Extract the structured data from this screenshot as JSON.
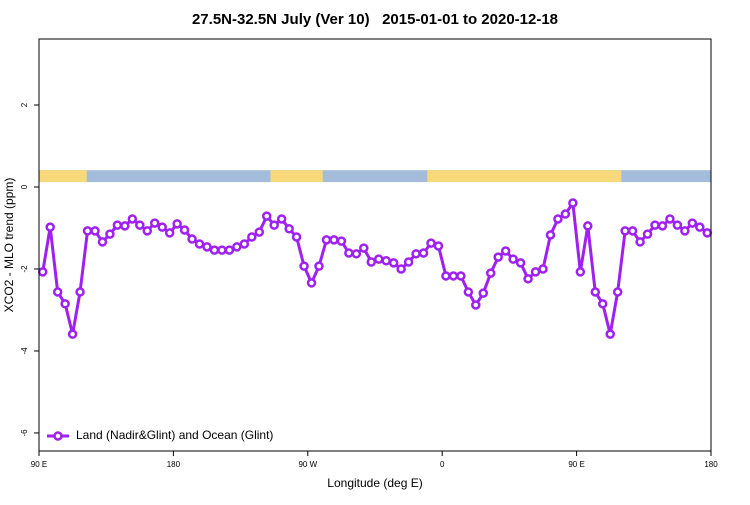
{
  "chart_data": {
    "type": "line",
    "title": "27.5N-32.5N July (Ver 10)   2015-01-01 to 2020-12-18",
    "xlabel": "Longitude (deg E)",
    "ylabel": "XCO2 - MLO trend (ppm)",
    "xlim": [
      90,
      540
    ],
    "xticks": [
      {
        "value": 90,
        "label": "90 E"
      },
      180,
      {
        "value": 270,
        "label": "90 W"
      },
      {
        "value": 360,
        "label": "0"
      },
      {
        "value": 450,
        "label": "90 E"
      },
      {
        "value": 540,
        "label": "180"
      }
    ],
    "ylim": [
      -6.44,
      3.61
    ],
    "yticks": [
      2,
      0,
      -2,
      -4,
      -6
    ],
    "legend": "bottom-left",
    "surface_band": {
      "ylim": [
        0.12,
        0.41
      ],
      "ocean_color": "#a3bcdc",
      "land_color": "#f7d97c",
      "land_ranges": [
        [
          90,
          122
        ],
        [
          245,
          280
        ],
        [
          350,
          480
        ]
      ]
    },
    "x": [
      92.5,
      97.5,
      102.5,
      107.5,
      112.5,
      117.5,
      122.5,
      127.5,
      132.5,
      137.5,
      142.5,
      147.5,
      152.5,
      157.5,
      162.5,
      167.5,
      172.5,
      177.5,
      182.5,
      187.5,
      192.5,
      197.5,
      202.5,
      207.5,
      212.5,
      217.5,
      222.5,
      227.5,
      232.5,
      237.5,
      242.5,
      247.5,
      252.5,
      257.5,
      262.5,
      267.5,
      272.5,
      277.5,
      282.5,
      287.5,
      292.5,
      297.5,
      302.5,
      307.5,
      312.5,
      317.5,
      322.5,
      327.5,
      332.5,
      337.5,
      342.5,
      347.5,
      352.5,
      357.5,
      362.5,
      367.5,
      372.5,
      377.5,
      382.5,
      387.5,
      392.5,
      397.5,
      402.5,
      407.5,
      412.5,
      417.5,
      422.5,
      427.5,
      432.5,
      437.5,
      442.5,
      447.5,
      452.5,
      457.5,
      462.5,
      467.5,
      472.5,
      477.5,
      482.5,
      487.5,
      492.5,
      497.5,
      502.5,
      507.5,
      512.5,
      517.5,
      522.5,
      527.5,
      532.5,
      537.5
    ],
    "series": [
      {
        "name": "Land (Nadir&Glint) and Ocean (Glint)",
        "color": "#a020f0",
        "values": [
          -2.07,
          -0.98,
          -2.56,
          -2.85,
          -3.59,
          -2.56,
          -1.07,
          -1.07,
          -1.34,
          -1.15,
          -0.93,
          -0.95,
          -0.78,
          -0.93,
          -1.07,
          -0.88,
          -0.98,
          -1.12,
          -0.9,
          -1.05,
          -1.27,
          -1.39,
          -1.46,
          -1.54,
          -1.54,
          -1.54,
          -1.46,
          -1.39,
          -1.22,
          -1.1,
          -0.71,
          -0.93,
          -0.78,
          -1.02,
          -1.22,
          -1.93,
          -2.34,
          -1.93,
          -1.29,
          -1.29,
          -1.32,
          -1.61,
          -1.63,
          -1.49,
          -1.83,
          -1.76,
          -1.8,
          -1.85,
          -2.0,
          -1.83,
          -1.63,
          -1.61,
          -1.37,
          -1.44,
          -2.17,
          -2.17,
          -2.17,
          -2.56,
          -2.88,
          -2.59,
          -2.1,
          -1.71,
          -1.56,
          -1.76,
          -1.85,
          -2.24,
          -2.07,
          -2.0,
          -1.17,
          -0.78,
          -0.66,
          -0.39,
          -2.07,
          -0.95,
          -2.56,
          -2.85,
          -3.59,
          -2.56,
          -1.07,
          -1.07,
          -1.34,
          -1.15,
          -0.93,
          -0.95,
          -0.78,
          -0.93,
          -1.07,
          -0.88,
          -0.98,
          -1.12
        ]
      }
    ]
  }
}
